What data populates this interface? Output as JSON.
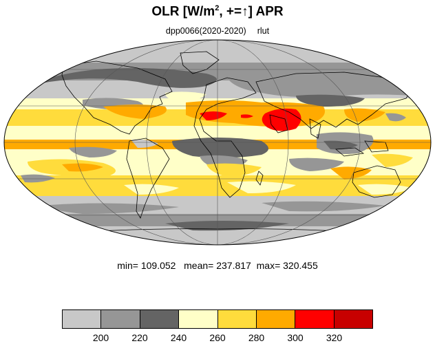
{
  "title": {
    "prefix": "OLR [W/m",
    "sup": "2",
    "suffix": ", +=",
    "arrow": "↑",
    "end": "] APR"
  },
  "subtitle": {
    "run": "dpp0066(2020-2020)",
    "var": "rlut"
  },
  "stats": {
    "min_label": "min=",
    "min": "109.052",
    "mean_label": "mean=",
    "mean": "237.817",
    "max_label": "max=",
    "max": "320.455"
  },
  "colorbar": {
    "colors": [
      "#c8c8c8",
      "#969696",
      "#646464",
      "#ffffc8",
      "#ffdc3c",
      "#ffaa00",
      "#ff0000",
      "#c80000"
    ],
    "ticks": [
      "200",
      "220",
      "240",
      "260",
      "280",
      "300",
      "320"
    ]
  },
  "map": {
    "projection": "mollweide",
    "outline_icon": "world-coastline"
  }
}
